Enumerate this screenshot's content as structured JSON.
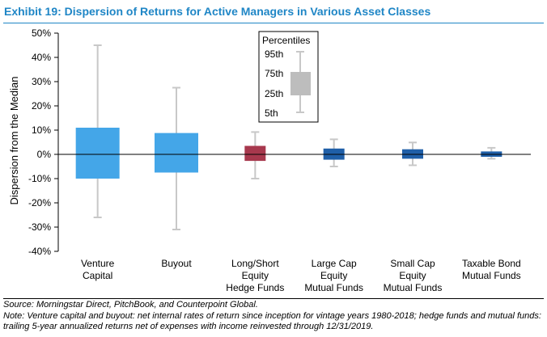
{
  "exhibit_title": "Exhibit 19: Dispersion of Returns for Active Managers in Various Asset Classes",
  "chart_data": {
    "type": "boxplot",
    "title": "Exhibit 19: Dispersion of Returns for Active Managers in Various Asset Classes",
    "ylabel": "Dispersion from the Median",
    "xlabel": "",
    "ylim": [
      -40,
      50
    ],
    "yticks": [
      -40,
      -30,
      -20,
      -10,
      0,
      10,
      20,
      30,
      40,
      50
    ],
    "ytick_labels": [
      "-40%",
      "-30%",
      "-20%",
      "-10%",
      "0%",
      "10%",
      "20%",
      "30%",
      "40%",
      "50%"
    ],
    "categories": [
      [
        "Venture",
        "Capital"
      ],
      [
        "Buyout"
      ],
      [
        "Long/Short",
        "Equity",
        "Hedge Funds"
      ],
      [
        "Large Cap",
        "Equity",
        "Mutual Funds"
      ],
      [
        "Small Cap",
        "Equity",
        "Mutual Funds"
      ],
      [
        "Taxable Bond",
        "Mutual Funds"
      ]
    ],
    "series": [
      {
        "name": "Venture Capital",
        "p5": -26,
        "p25": -10,
        "p75": 11,
        "p95": 45,
        "color": "#44a6e8"
      },
      {
        "name": "Buyout",
        "p5": -31,
        "p25": -7.5,
        "p75": 8.8,
        "p95": 27.5,
        "color": "#44a6e8"
      },
      {
        "name": "Long/Short Equity Hedge Funds",
        "p5": -10,
        "p25": -2.7,
        "p75": 3.5,
        "p95": 9.2,
        "color": "#a7384d"
      },
      {
        "name": "Large Cap Equity Mutual Funds",
        "p5": -5,
        "p25": -2.2,
        "p75": 2.4,
        "p95": 6.2,
        "color": "#1f5fa8"
      },
      {
        "name": "Small Cap Equity Mutual Funds",
        "p5": -4.5,
        "p25": -1.8,
        "p75": 2.1,
        "p95": 4.9,
        "color": "#1f5fa8"
      },
      {
        "name": "Taxable Bond Mutual Funds",
        "p5": -1.8,
        "p25": -1,
        "p75": 1.2,
        "p95": 2.7,
        "color": "#1f5fa8"
      }
    ],
    "whisker_color": "#c8c8c8",
    "legend": {
      "title": "Percentiles",
      "labels": [
        "95th",
        "75th",
        "25th",
        "5th"
      ],
      "position": "top-center",
      "box_color": "#bdbdbd"
    },
    "grid": false
  },
  "source_note": "Source: Morningstar Direct, PitchBook, and Counterpoint Global.",
  "footnote": "Note: Venture capital and buyout: net internal rates of return since inception for vintage years 1980-2018; hedge funds and mutual funds: trailing 5-year annualized returns net of expenses with income reinvested through 12/31/2019."
}
